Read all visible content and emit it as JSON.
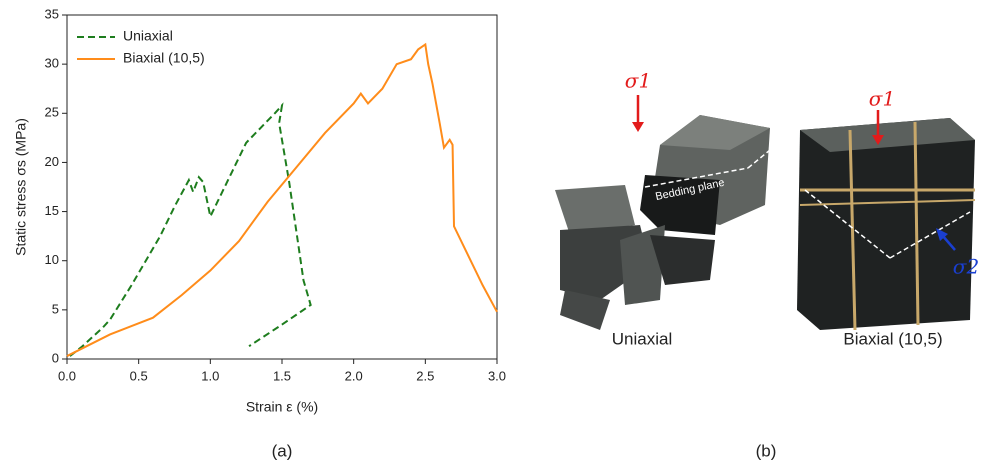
{
  "chart_data": {
    "type": "line",
    "xlabel": "Strain ε (%)",
    "ylabel": "Static stress σs (MPa)",
    "xlim": [
      0,
      3
    ],
    "ylim": [
      0,
      35
    ],
    "xticks": [
      {
        "value": 0,
        "label": "0.0"
      },
      0.5,
      {
        "value": 1,
        "label": "1.0"
      },
      1.5,
      {
        "value": 2,
        "label": "2.0"
      },
      2.5,
      {
        "value": 3,
        "label": "3.0"
      }
    ],
    "yticks": [
      0,
      5,
      10,
      15,
      20,
      25,
      30,
      35
    ],
    "legend": "top-left",
    "series": [
      {
        "name": "Uniaxial",
        "color": "#1e7d1e",
        "line_style": "dashed",
        "x": [
          0.02,
          0.1,
          0.25,
          0.3,
          0.45,
          0.55,
          0.65,
          0.75,
          0.85,
          0.88,
          0.92,
          0.95,
          1.0,
          1.05,
          1.15,
          1.25,
          1.35,
          1.45,
          1.5,
          1.48,
          1.55,
          1.6,
          1.65,
          1.7,
          1.5,
          1.27
        ],
        "values": [
          0.3,
          1.2,
          3.2,
          4,
          7.5,
          10,
          12.5,
          15.5,
          18.2,
          17,
          18.5,
          18,
          14.5,
          16,
          19,
          22,
          23.5,
          25,
          25.8,
          24,
          18,
          13,
          8,
          5.5,
          3.5,
          1.3
        ]
      },
      {
        "name": "Biaxial (10,5)",
        "color": "#ff8c1a",
        "line_style": "solid",
        "x": [
          0,
          0.3,
          0.6,
          0.8,
          1.0,
          1.2,
          1.4,
          1.6,
          1.8,
          2.0,
          2.05,
          2.1,
          2.2,
          2.3,
          2.4,
          2.45,
          2.5,
          2.52,
          2.55,
          2.6,
          2.63,
          2.67,
          2.69,
          2.7,
          2.8,
          2.9,
          3.0
        ],
        "values": [
          0.3,
          2.5,
          4.2,
          6.5,
          9,
          12,
          16,
          19.5,
          23,
          26,
          27,
          26,
          27.5,
          30,
          30.5,
          31.5,
          32,
          30,
          28,
          24,
          21.5,
          22.3,
          21.8,
          13.5,
          10.5,
          7.5,
          4.8
        ]
      }
    ]
  },
  "panel_labels": [
    "(a)",
    "(b)"
  ],
  "photos": [
    {
      "caption": "Uniaxial",
      "annotations": [
        "σ1",
        "Bedding plane"
      ]
    },
    {
      "caption": "Biaxial (10,5)",
      "annotations": [
        "σ1",
        "σ2"
      ]
    }
  ]
}
